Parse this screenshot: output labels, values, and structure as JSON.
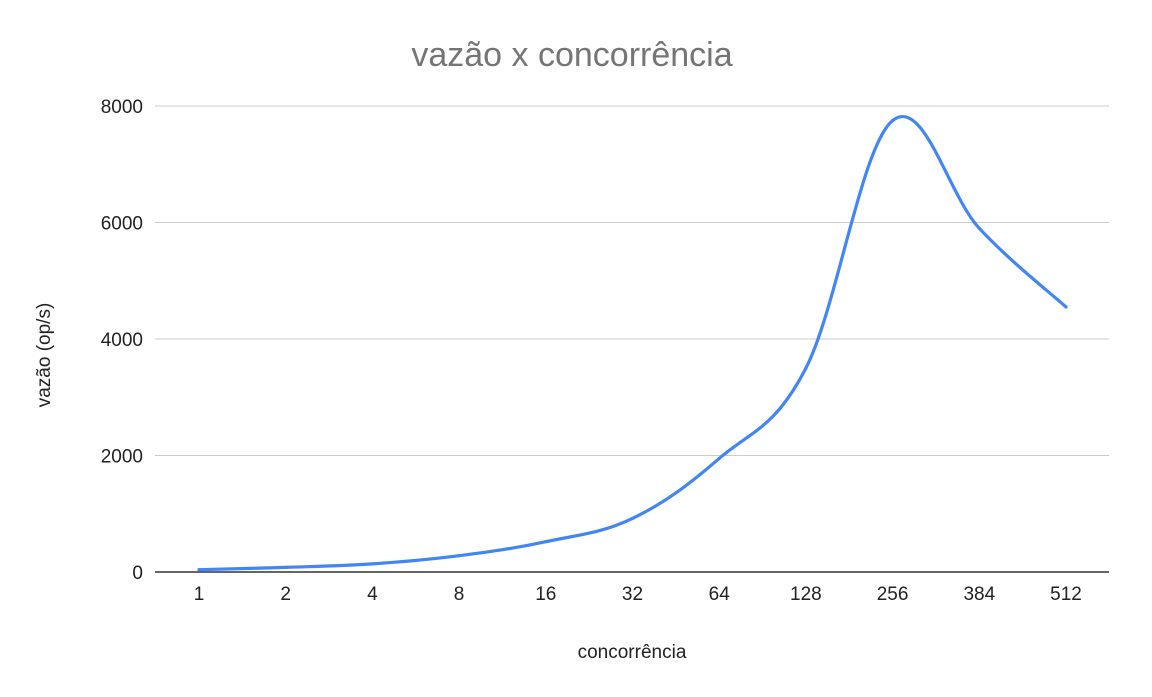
{
  "chart_data": {
    "type": "line",
    "title": "vazão x concorrência",
    "xlabel": "concorrência",
    "ylabel": "vazão (op/s)",
    "categories": [
      "1",
      "2",
      "4",
      "8",
      "16",
      "32",
      "64",
      "128",
      "256",
      "384",
      "512"
    ],
    "series": [
      {
        "values": [
          40,
          80,
          140,
          280,
          520,
          920,
          1950,
          3500,
          7750,
          5900,
          4550
        ],
        "color": "#4285f4"
      }
    ],
    "ylim": [
      0,
      8000
    ],
    "yticks": [
      "0",
      "2000",
      "4000",
      "6000",
      "8000"
    ],
    "grid": true,
    "legend": "none"
  }
}
